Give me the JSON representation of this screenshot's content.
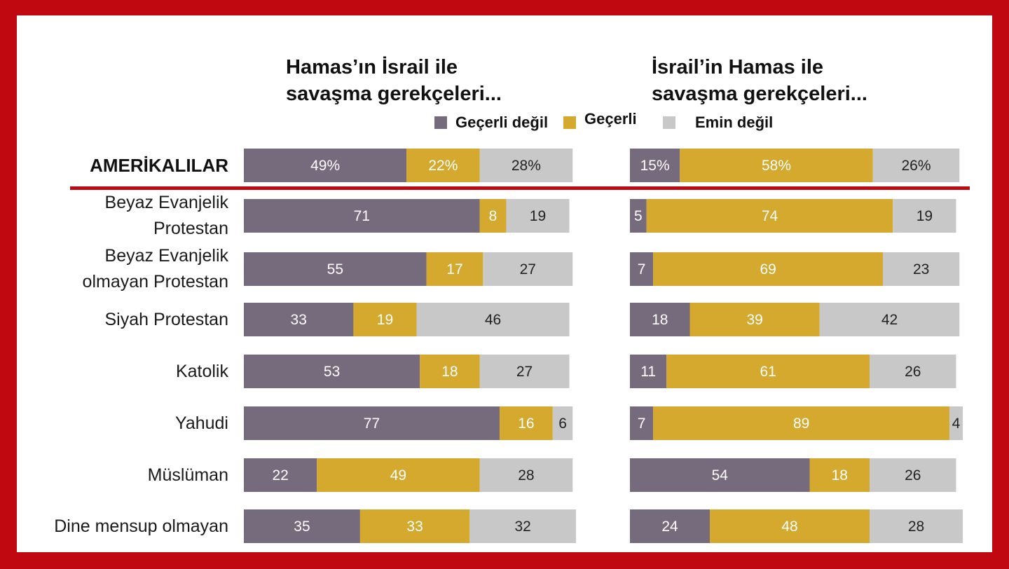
{
  "left_title": [
    "Hamas’ın İsrail ile",
    "savaşma gerekçeleri..."
  ],
  "right_title": [
    "İsrail’in Hamas ile",
    "savaşma gerekçeleri..."
  ],
  "legend": [
    {
      "label": "Geçerli değil",
      "color": "#766a7d"
    },
    {
      "label": "Geçerli",
      "color": "#d4a92e"
    },
    {
      "label": "Emin değil",
      "color": "#c8c8c8"
    }
  ],
  "rows": [
    {
      "label": [
        "AMERİKALILAR"
      ],
      "headline": true
    },
    {
      "label": [
        "Beyaz Evanjelik",
        "Protestan"
      ]
    },
    {
      "label": [
        "Beyaz Evanjelik",
        "olmayan Protestan"
      ]
    },
    {
      "label": [
        "Siyah Protestan"
      ]
    },
    {
      "label": [
        "Katolik"
      ]
    },
    {
      "label": [
        "Yahudi"
      ]
    },
    {
      "label": [
        "Müslüman"
      ]
    },
    {
      "label": [
        "Dine mensup olmayan"
      ]
    }
  ],
  "chart_data": [
    {
      "type": "bar",
      "stacked": true,
      "orientation": "horizontal",
      "title": "Hamas’ın İsrail ile savaşma gerekçeleri...",
      "categories": [
        "AMERİKALILAR",
        "Beyaz Evanjelik Protestan",
        "Beyaz Evanjelik olmayan Protestan",
        "Siyah Protestan",
        "Katolik",
        "Yahudi",
        "Müslüman",
        "Dine mensup olmayan"
      ],
      "series": [
        {
          "name": "Geçerli değil",
          "color": "#766a7d",
          "values": [
            49,
            71,
            55,
            33,
            53,
            77,
            22,
            35
          ],
          "labels": [
            "49%",
            "71",
            "55",
            "33",
            "53",
            "77",
            "22",
            "35"
          ]
        },
        {
          "name": "Geçerli",
          "color": "#d4a92e",
          "values": [
            22,
            8,
            17,
            19,
            18,
            16,
            49,
            33
          ],
          "labels": [
            "22%",
            "8",
            "17",
            "19",
            "18",
            "16",
            "49",
            "33"
          ]
        },
        {
          "name": "Emin değil",
          "color": "#c8c8c8",
          "values": [
            28,
            19,
            27,
            46,
            27,
            6,
            28,
            32
          ],
          "labels": [
            "28%",
            "19",
            "27",
            "46",
            "27",
            "6",
            "28",
            "32"
          ]
        }
      ]
    },
    {
      "type": "bar",
      "stacked": true,
      "orientation": "horizontal",
      "title": "İsrail’in Hamas ile savaşma gerekçeleri...",
      "categories": [
        "AMERİKALILAR",
        "Beyaz Evanjelik Protestan",
        "Beyaz Evanjelik olmayan Protestan",
        "Siyah Protestan",
        "Katolik",
        "Yahudi",
        "Müslüman",
        "Dine mensup olmayan"
      ],
      "series": [
        {
          "name": "Geçerli değil",
          "color": "#766a7d",
          "values": [
            15,
            5,
            7,
            18,
            11,
            7,
            54,
            24
          ],
          "labels": [
            "15%",
            "5",
            "7",
            "18",
            "11",
            "7",
            "54",
            "24"
          ]
        },
        {
          "name": "Geçerli",
          "color": "#d4a92e",
          "values": [
            58,
            74,
            69,
            39,
            61,
            89,
            18,
            48
          ],
          "labels": [
            "58%",
            "74",
            "69",
            "39",
            "61",
            "89",
            "18",
            "48"
          ]
        },
        {
          "name": "Emin değil",
          "color": "#c8c8c8",
          "values": [
            26,
            19,
            23,
            42,
            26,
            4,
            26,
            28
          ],
          "labels": [
            "26%",
            "19",
            "23",
            "42",
            "26",
            "4",
            "26",
            "28"
          ]
        }
      ]
    }
  ]
}
